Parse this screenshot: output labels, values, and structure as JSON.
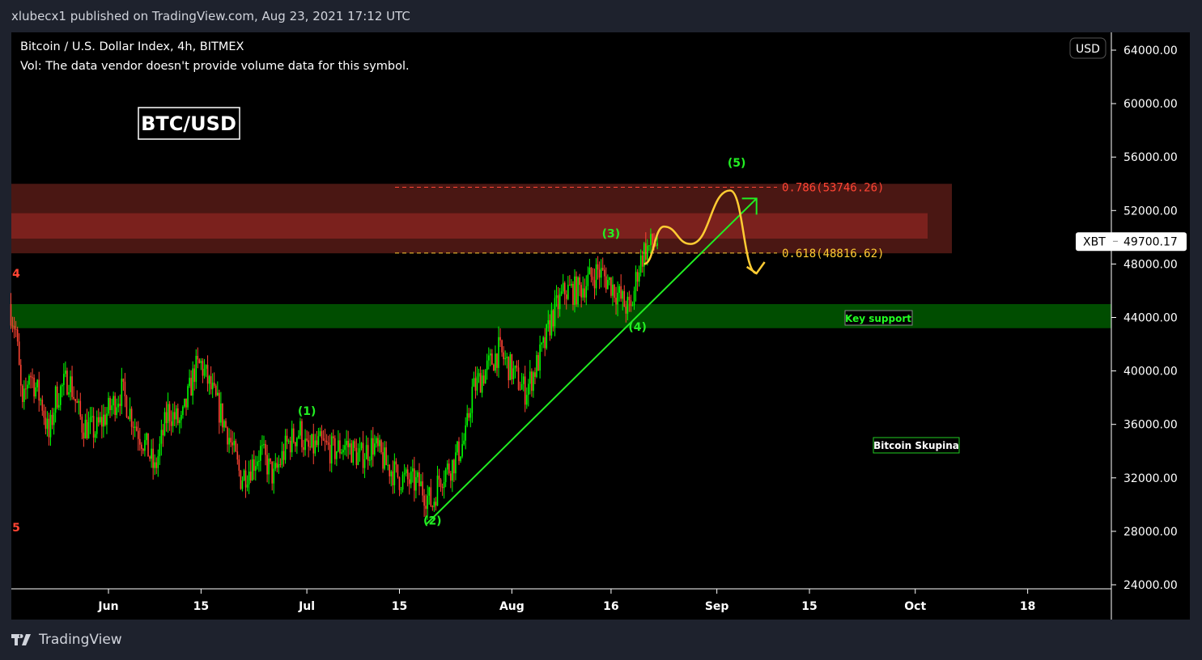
{
  "header": {
    "published": "xlubecx1 published on TradingView.com, Aug 23, 2021 17:12 UTC"
  },
  "legend": {
    "symbol_line": "Bitcoin / U.S. Dollar Index, 4h, BITMEX",
    "volume_line": "Vol: The data vendor doesn't provide volume data for this symbol."
  },
  "footer": {
    "brand": "TradingView"
  },
  "colors": {
    "up": "#00ff00",
    "down": "#ff4433",
    "fib_high": "#ff4433",
    "fib_low": "#ffcc33",
    "support_zone": "#004d00",
    "resistance_outer": "#4a1713",
    "resistance_inner": "#7b211d"
  },
  "chart_data": {
    "type": "candlestick",
    "title": "BTC/USD",
    "currency": "USD",
    "ylim": [
      24000,
      64000
    ],
    "y_ticks": [
      "64000.00",
      "60000.00",
      "56000.00",
      "52000.00",
      "48000.00",
      "44000.00",
      "40000.00",
      "36000.00",
      "32000.00",
      "28000.00",
      "24000.00"
    ],
    "y_tick_values": [
      64000,
      60000,
      56000,
      52000,
      48000,
      44000,
      40000,
      36000,
      32000,
      28000,
      24000
    ],
    "x_ticks": [
      {
        "label": "Jun",
        "day": 0
      },
      {
        "label": "15",
        "day": 14
      },
      {
        "label": "Jul",
        "day": 30
      },
      {
        "label": "15",
        "day": 44
      },
      {
        "label": "Aug",
        "day": 61
      },
      {
        "label": "16",
        "day": 76
      },
      {
        "label": "Sep",
        "day": 92
      },
      {
        "label": "15",
        "day": 106
      },
      {
        "label": "Oct",
        "day": 122
      },
      {
        "label": "18",
        "day": 139
      }
    ],
    "x_unit": "days since Jun 1, 2021",
    "price_path": [
      [
        -15,
        45000
      ],
      [
        -14,
        43000
      ],
      [
        -13,
        37000
      ],
      [
        -12,
        40000
      ],
      [
        -10,
        37500
      ],
      [
        -9,
        35000
      ],
      [
        -8,
        38000
      ],
      [
        -6,
        39500
      ],
      [
        -4,
        36000
      ],
      [
        -2,
        35500
      ],
      [
        0,
        37000
      ],
      [
        2,
        38500
      ],
      [
        4,
        36000
      ],
      [
        6,
        34000
      ],
      [
        7,
        32500
      ],
      [
        9,
        37000
      ],
      [
        11,
        36000
      ],
      [
        13,
        40000
      ],
      [
        14,
        40500
      ],
      [
        16,
        38000
      ],
      [
        18,
        35500
      ],
      [
        20,
        32000
      ],
      [
        21,
        32500
      ],
      [
        23,
        34000
      ],
      [
        25,
        32000
      ],
      [
        27,
        34500
      ],
      [
        29,
        35500
      ],
      [
        30,
        34000
      ],
      [
        32,
        34500
      ],
      [
        34,
        34000
      ],
      [
        36,
        34500
      ],
      [
        38,
        33500
      ],
      [
        40,
        34500
      ],
      [
        42,
        33000
      ],
      [
        44,
        32000
      ],
      [
        47,
        31500
      ],
      [
        49,
        30000
      ],
      [
        50,
        32000
      ],
      [
        52,
        33000
      ],
      [
        54,
        35000
      ],
      [
        55,
        38500
      ],
      [
        57,
        40000
      ],
      [
        59,
        41500
      ],
      [
        61,
        40000
      ],
      [
        63,
        38500
      ],
      [
        64,
        39500
      ],
      [
        66,
        42000
      ],
      [
        67,
        44000
      ],
      [
        69,
        46000
      ],
      [
        71,
        46000
      ],
      [
        73,
        47000
      ],
      [
        74,
        47500
      ],
      [
        76,
        46500
      ],
      [
        78,
        45000
      ],
      [
        79,
        44500
      ],
      [
        80,
        47500
      ],
      [
        81,
        49000
      ],
      [
        83,
        49700
      ]
    ],
    "last_price": {
      "symbol": "XBT",
      "value": "49700.17"
    },
    "fib_levels": [
      {
        "label": "0.786(53746.26)",
        "value": 53746.26
      },
      {
        "label": "0.618(48816.62)",
        "value": 48816.62
      }
    ],
    "zones": [
      {
        "name": "resistance",
        "from": 48800,
        "to": 54000
      },
      {
        "name": "resistance-core",
        "from": 49900,
        "to": 51800
      },
      {
        "name": "support",
        "from": 43200,
        "to": 45000
      }
    ],
    "annotations": [
      {
        "text": "BTC/USD",
        "kind": "title-box"
      },
      {
        "text": "Key support",
        "kind": "label"
      },
      {
        "text": "Bitcoin Skupina",
        "kind": "label"
      },
      {
        "text": "(1)",
        "day": 30,
        "price": 36700
      },
      {
        "text": "(2)",
        "day": 49,
        "price": 28500
      },
      {
        "text": "(3)",
        "day": 76,
        "price": 50000
      },
      {
        "text": "(4)",
        "day": 80,
        "price": 43000
      },
      {
        "text": "(5)",
        "day": 95,
        "price": 55300
      },
      {
        "text": "4",
        "day": -15,
        "price": 47000
      },
      {
        "text": "5",
        "day": -14,
        "price": 28000
      }
    ],
    "trendline": [
      [
        48,
        28500
      ],
      [
        98,
        52900
      ]
    ],
    "projection": [
      [
        81,
        48000
      ],
      [
        84,
        50800
      ],
      [
        88,
        49500
      ],
      [
        94,
        53500
      ],
      [
        98,
        47300
      ]
    ]
  }
}
